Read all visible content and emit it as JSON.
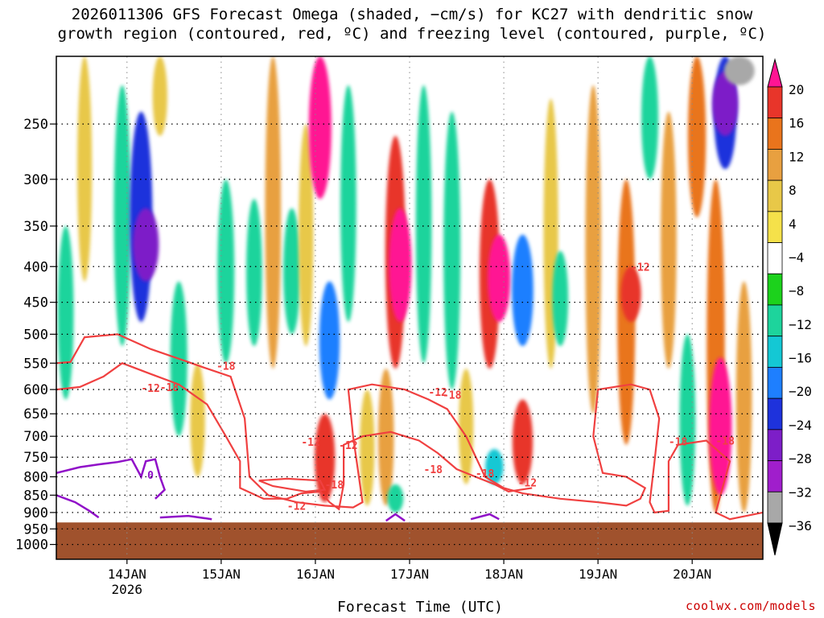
{
  "title": {
    "line1": "2026011306 GFS Forecast Omega (shaded, −cm/s) for KC27 with dendritic snow",
    "line2": "growth region (contoured, red, ºC) and freezing level (contoured, purple, ºC)"
  },
  "credit": "coolwx.com/models",
  "chart_data": {
    "type": "heatmap",
    "title": "2026011306 GFS Forecast Omega (shaded, −cm/s) for KC27 with dendritic snow growth region (contoured, red, ºC) and freezing level (contoured, purple, ºC)",
    "xlabel": "Forecast Time (UTC)",
    "ylabel": "",
    "x_ticks": [
      {
        "label": "14JAN",
        "sublabel": "2026",
        "day": 14
      },
      {
        "label": "15JAN",
        "sublabel": "",
        "day": 15
      },
      {
        "label": "16JAN",
        "sublabel": "",
        "day": 16
      },
      {
        "label": "17JAN",
        "sublabel": "",
        "day": 17
      },
      {
        "label": "18JAN",
        "sublabel": "",
        "day": 18
      },
      {
        "label": "19JAN",
        "sublabel": "",
        "day": 19
      },
      {
        "label": "20JAN",
        "sublabel": "",
        "day": 20
      }
    ],
    "xlim_days": [
      13.25,
      20.75
    ],
    "y_ticks": [
      250,
      300,
      350,
      400,
      450,
      500,
      550,
      600,
      650,
      700,
      750,
      800,
      850,
      900,
      950,
      1000
    ],
    "ylim": [
      200,
      1050
    ],
    "y_scale": "log",
    "ground_pressure": 930,
    "colorbar": {
      "labels": [
        "20",
        "16",
        "12",
        "8",
        "4",
        "−4",
        "−8",
        "−12",
        "−16",
        "−20",
        "−24",
        "−28",
        "−32",
        "−36"
      ],
      "colors": [
        "#ff1493",
        "#e8352a",
        "#e9741c",
        "#e8a040",
        "#e8c848",
        "#f5e14a",
        "#ffffff",
        "#1cd21c",
        "#1dd49c",
        "#14c8d4",
        "#1e7fff",
        "#1e32dc",
        "#7d1ec8",
        "#a01ecc",
        "#a8a8a8",
        "#000000"
      ]
    },
    "contour_labels_red": [
      "-12",
      "-18",
      "-12",
      "-18",
      "-12",
      "-18",
      "-12",
      "-18",
      "-18",
      "-12",
      "-18",
      "-12",
      "-18",
      "-18",
      "-12"
    ],
    "contour_labels_purple": [
      "0"
    ],
    "omega_blobs": [
      {
        "day": 13.35,
        "p_top": 350,
        "p_bot": 620,
        "val": -8
      },
      {
        "day": 13.55,
        "p_top": 200,
        "p_bot": 420,
        "val": 6
      },
      {
        "day": 13.95,
        "p_top": 220,
        "p_bot": 520,
        "val": -10
      },
      {
        "day": 14.15,
        "p_top": 240,
        "p_bot": 480,
        "val": -20
      },
      {
        "day": 14.2,
        "p_top": 330,
        "p_bot": 420,
        "val": -26
      },
      {
        "day": 14.35,
        "p_top": 200,
        "p_bot": 260,
        "val": 6
      },
      {
        "day": 14.55,
        "p_top": 420,
        "p_bot": 700,
        "val": -10
      },
      {
        "day": 14.75,
        "p_top": 550,
        "p_bot": 800,
        "val": 6
      },
      {
        "day": 15.05,
        "p_top": 300,
        "p_bot": 550,
        "val": -10
      },
      {
        "day": 15.35,
        "p_top": 320,
        "p_bot": 520,
        "val": -8
      },
      {
        "day": 15.55,
        "p_top": 200,
        "p_bot": 560,
        "val": 8
      },
      {
        "day": 15.75,
        "p_top": 330,
        "p_bot": 500,
        "val": -10
      },
      {
        "day": 15.9,
        "p_top": 250,
        "p_bot": 520,
        "val": 6
      },
      {
        "day": 16.05,
        "p_top": 200,
        "p_bot": 320,
        "val": 20
      },
      {
        "day": 16.15,
        "p_top": 420,
        "p_bot": 620,
        "val": -16
      },
      {
        "day": 16.1,
        "p_top": 650,
        "p_bot": 870,
        "val": 16
      },
      {
        "day": 16.35,
        "p_top": 220,
        "p_bot": 480,
        "val": -8
      },
      {
        "day": 16.55,
        "p_top": 600,
        "p_bot": 880,
        "val": 6
      },
      {
        "day": 16.85,
        "p_top": 260,
        "p_bot": 560,
        "val": 16
      },
      {
        "day": 16.9,
        "p_top": 330,
        "p_bot": 480,
        "val": 20
      },
      {
        "day": 16.75,
        "p_top": 560,
        "p_bot": 880,
        "val": 8
      },
      {
        "day": 16.85,
        "p_top": 820,
        "p_bot": 900,
        "val": -8
      },
      {
        "day": 17.15,
        "p_top": 220,
        "p_bot": 550,
        "val": -8
      },
      {
        "day": 17.45,
        "p_top": 240,
        "p_bot": 600,
        "val": -10
      },
      {
        "day": 17.6,
        "p_top": 560,
        "p_bot": 820,
        "val": 6
      },
      {
        "day": 17.85,
        "p_top": 300,
        "p_bot": 560,
        "val": 16
      },
      {
        "day": 17.95,
        "p_top": 360,
        "p_bot": 480,
        "val": 20
      },
      {
        "day": 18.2,
        "p_top": 360,
        "p_bot": 520,
        "val": -18
      },
      {
        "day": 17.9,
        "p_top": 730,
        "p_bot": 820,
        "val": -12
      },
      {
        "day": 18.2,
        "p_top": 620,
        "p_bot": 820,
        "val": 16
      },
      {
        "day": 18.5,
        "p_top": 230,
        "p_bot": 560,
        "val": 6
      },
      {
        "day": 18.6,
        "p_top": 380,
        "p_bot": 520,
        "val": -8
      },
      {
        "day": 18.95,
        "p_top": 220,
        "p_bot": 650,
        "val": 8
      },
      {
        "day": 19.3,
        "p_top": 300,
        "p_bot": 720,
        "val": 12
      },
      {
        "day": 19.35,
        "p_top": 400,
        "p_bot": 480,
        "val": 16
      },
      {
        "day": 19.55,
        "p_top": 200,
        "p_bot": 300,
        "val": -10
      },
      {
        "day": 19.75,
        "p_top": 240,
        "p_bot": 560,
        "val": 8
      },
      {
        "day": 19.95,
        "p_top": 500,
        "p_bot": 880,
        "val": -8
      },
      {
        "day": 20.05,
        "p_top": 200,
        "p_bot": 340,
        "val": 12
      },
      {
        "day": 20.25,
        "p_top": 300,
        "p_bot": 900,
        "val": 12
      },
      {
        "day": 20.3,
        "p_top": 540,
        "p_bot": 850,
        "val": 20
      },
      {
        "day": 20.35,
        "p_top": 200,
        "p_bot": 290,
        "val": -20
      },
      {
        "day": 20.35,
        "p_top": 210,
        "p_bot": 260,
        "val": -26
      },
      {
        "day": 20.5,
        "p_top": 200,
        "p_bot": 220,
        "val": -34
      },
      {
        "day": 20.55,
        "p_top": 420,
        "p_bot": 900,
        "val": 8
      }
    ]
  }
}
